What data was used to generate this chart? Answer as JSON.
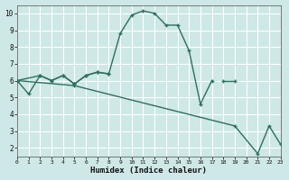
{
  "line1_x": [
    0,
    1,
    2,
    3,
    4,
    5,
    6,
    7,
    8,
    9,
    10,
    11,
    12,
    13,
    14,
    15,
    16,
    17
  ],
  "line1_y": [
    6.0,
    5.2,
    6.3,
    6.0,
    6.3,
    5.8,
    6.3,
    6.5,
    6.4,
    8.8,
    9.9,
    10.15,
    10.0,
    9.3,
    9.3,
    7.8,
    4.6,
    6.0
  ],
  "line2_x": [
    0,
    2,
    3,
    4,
    5,
    6,
    7,
    8,
    18,
    19
  ],
  "line2_y": [
    6.0,
    6.3,
    6.0,
    6.3,
    5.8,
    6.3,
    6.5,
    6.4,
    6.0,
    6.0
  ],
  "line3_x": [
    0,
    5,
    19,
    21,
    22,
    23
  ],
  "line3_y": [
    6.0,
    5.7,
    3.3,
    1.65,
    3.3,
    2.2
  ],
  "line_color": "#2e6e62",
  "bg_color": "#cde8e6",
  "grid_color": "#b0d0d0",
  "xlabel": "Humidex (Indice chaleur)",
  "xlim": [
    0,
    23
  ],
  "ylim": [
    1.5,
    10.5
  ],
  "yticks": [
    2,
    3,
    4,
    5,
    6,
    7,
    8,
    9,
    10
  ],
  "xticks": [
    0,
    1,
    2,
    3,
    4,
    5,
    6,
    7,
    8,
    9,
    10,
    11,
    12,
    13,
    14,
    15,
    16,
    17,
    18,
    19,
    20,
    21,
    22,
    23
  ]
}
